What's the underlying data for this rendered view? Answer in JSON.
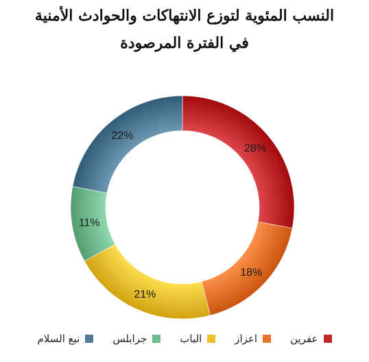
{
  "chart_data": {
    "type": "pie",
    "title_line1": "النسب المئوية لتوزع الانتهاكات والحوادث الأمنية",
    "title_line2": "في الفترة المرصودة",
    "hole": true,
    "legend_position": "bottom",
    "slices": [
      {
        "label": "عفرين",
        "value": 28,
        "display": "28%",
        "color": "#c0282b"
      },
      {
        "label": "اعزاز",
        "value": 18,
        "display": "18%",
        "color": "#e8722c"
      },
      {
        "label": "الباب",
        "value": 21,
        "display": "21%",
        "color": "#f0c030"
      },
      {
        "label": "جرابلس",
        "value": 11,
        "display": "11%",
        "color": "#72bb8e"
      },
      {
        "label": "نبع السلام",
        "value": 22,
        "display": "22%",
        "color": "#4f7995"
      }
    ]
  }
}
